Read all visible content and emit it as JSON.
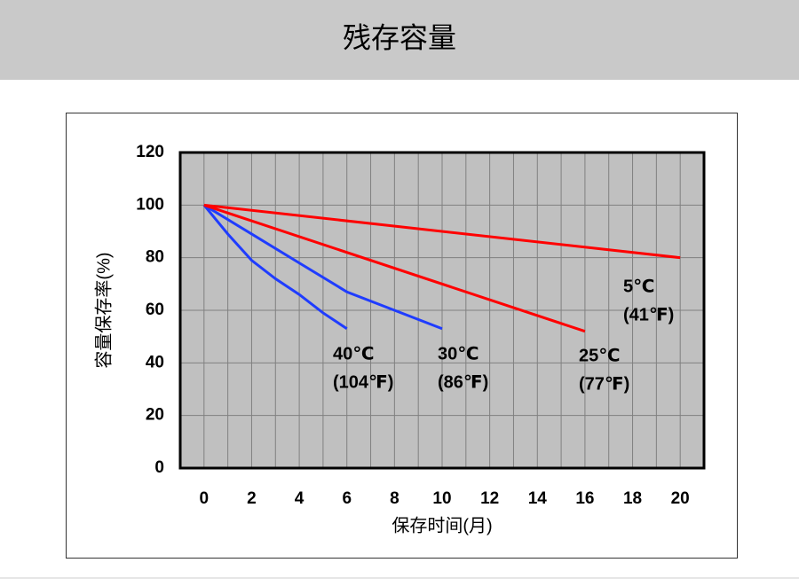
{
  "header": {
    "title": "残存容量"
  },
  "chart_data": {
    "type": "line",
    "x_label": "保存时间(月)",
    "y_label": "容量保存率(%)",
    "xlim": [
      -1,
      21
    ],
    "xticks": [
      0,
      2,
      4,
      6,
      8,
      10,
      12,
      14,
      16,
      18,
      20
    ],
    "ylim": [
      0,
      120
    ],
    "yticks": [
      0,
      20,
      40,
      60,
      80,
      100,
      120
    ],
    "grid": true,
    "background": "#c0c0c0",
    "series": [
      {
        "name": "40℃",
        "sub": "(104℉)",
        "color": "#1f3cff",
        "x": [
          0,
          1,
          2,
          3,
          4,
          5,
          6
        ],
        "values": [
          100,
          89,
          79,
          72,
          66,
          59,
          53
        ]
      },
      {
        "name": "30℃",
        "sub": "(86℉)",
        "color": "#1f3cff",
        "x": [
          0,
          2,
          4,
          6,
          8,
          10
        ],
        "values": [
          100,
          89,
          78,
          67,
          60,
          53
        ]
      },
      {
        "name": "25℃",
        "sub": "(77℉)",
        "color": "#ff0000",
        "x": [
          0,
          16
        ],
        "values": [
          100,
          52
        ]
      },
      {
        "name": "5℃",
        "sub": "(41℉)",
        "color": "#ff0000",
        "x": [
          0,
          20
        ],
        "values": [
          100,
          80
        ]
      }
    ]
  }
}
